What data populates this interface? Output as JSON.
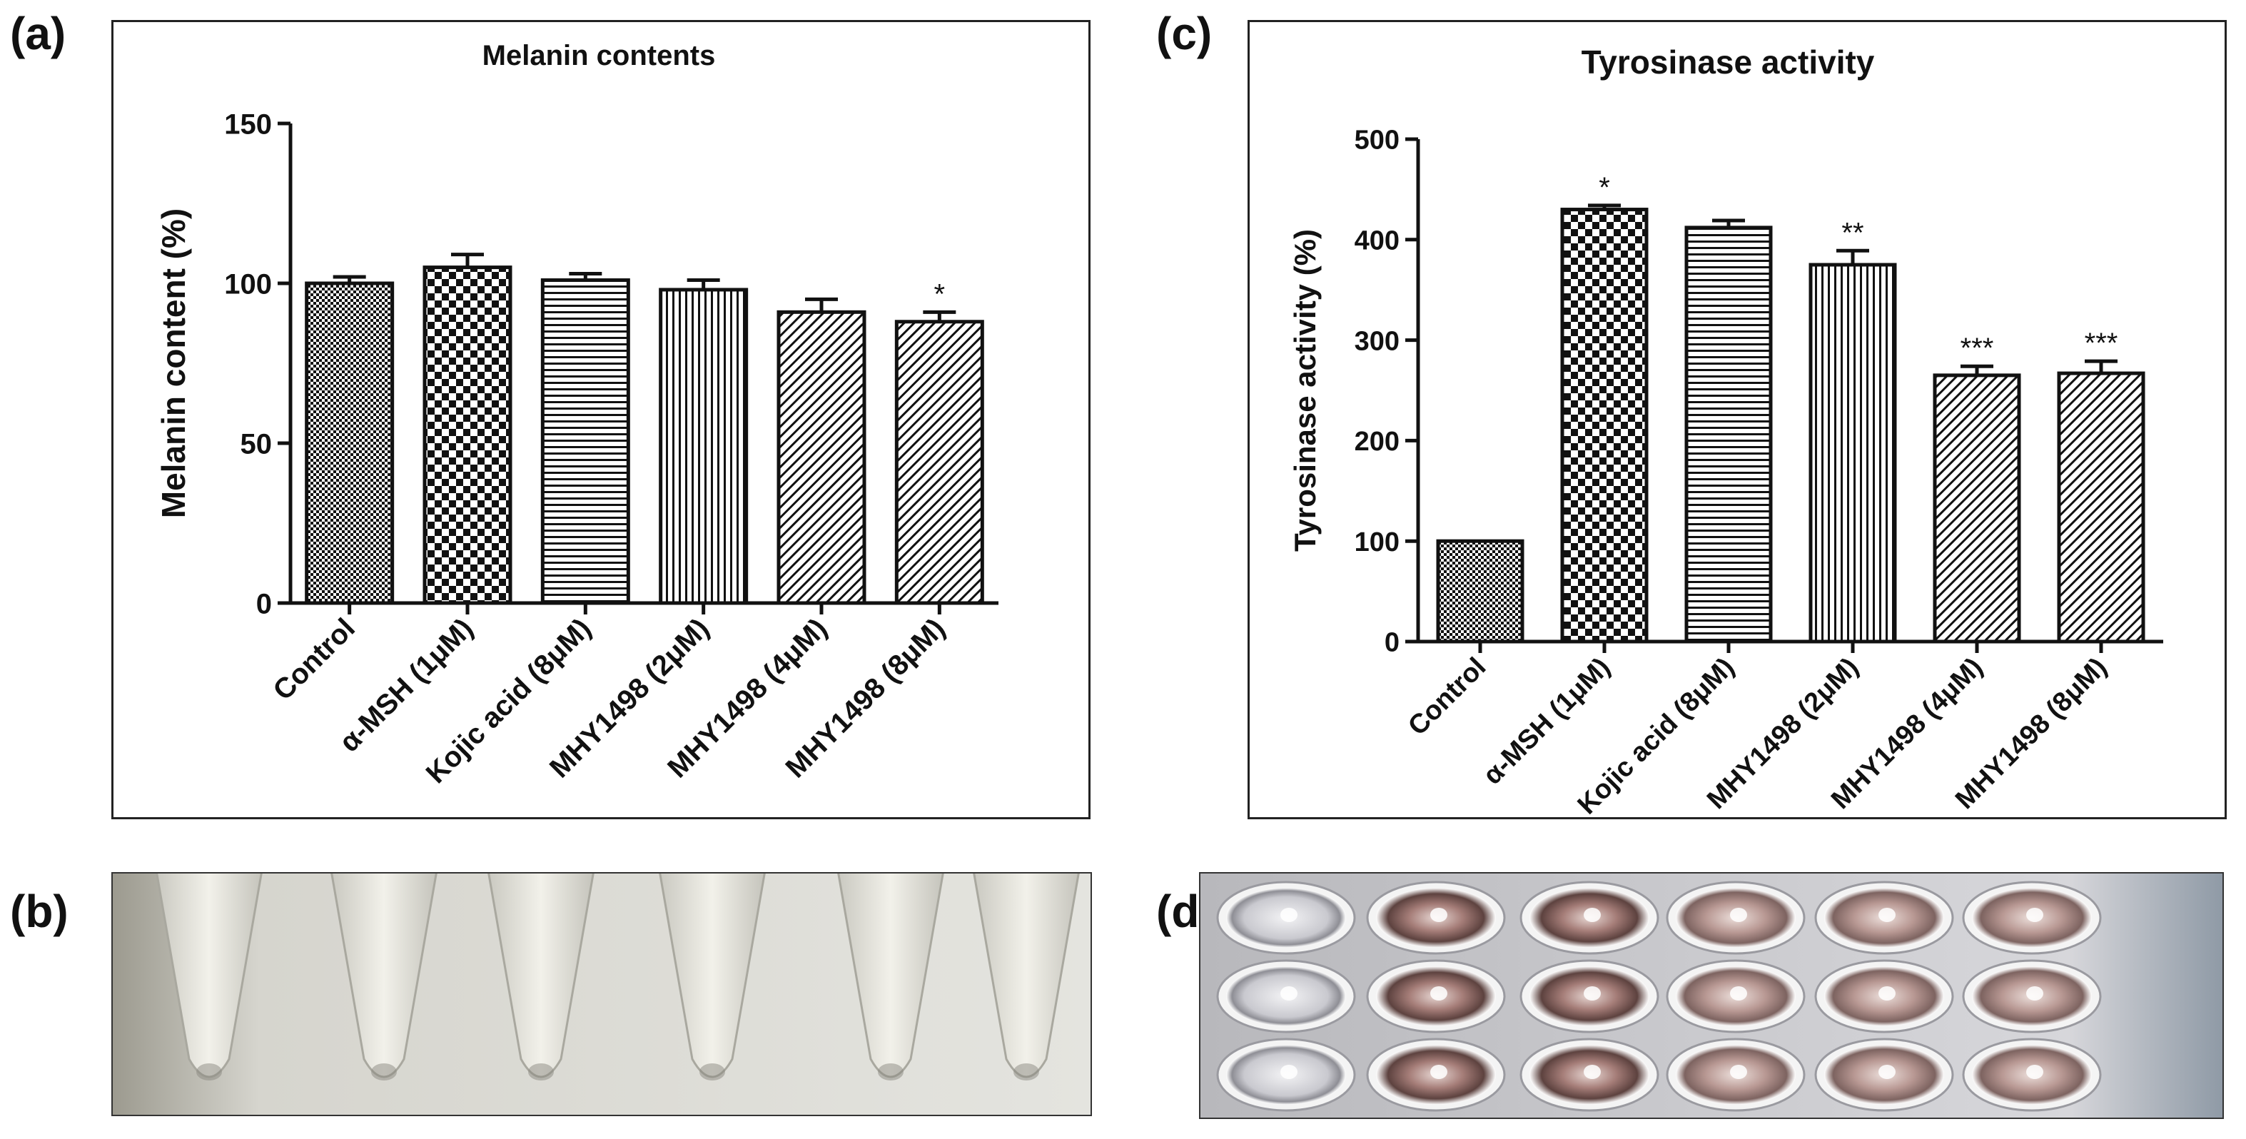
{
  "panels": {
    "a": "(a)",
    "b": "(b)",
    "c": "(c)",
    "d": "(d)"
  },
  "chart_data": [
    {
      "id": "melanin",
      "type": "bar",
      "title": "Melanin contents",
      "xlabel": "",
      "ylabel": "Melanin content (%)",
      "ylim": [
        0,
        150
      ],
      "yticks": [
        0,
        50,
        100,
        150
      ],
      "categories": [
        "Control",
        "α-MSH (1μM)",
        "Kojic acid (8μM)",
        "MHY1498 (2μM)",
        "MHY1498 (4μM)",
        "MHY1498 (8μM)"
      ],
      "values": [
        100,
        105,
        101,
        98,
        91,
        88
      ],
      "errors": [
        2,
        4,
        2,
        3,
        4,
        3
      ],
      "significance": [
        "",
        "",
        "",
        "",
        "",
        "*"
      ],
      "patterns": [
        "fine-check",
        "checker",
        "horizontal",
        "vertical",
        "diagonal",
        "diagonal"
      ]
    },
    {
      "id": "tyrosinase",
      "type": "bar",
      "title": "Tyrosinase activity",
      "xlabel": "",
      "ylabel": "Tyrosinase activity (%)",
      "ylim": [
        0,
        500
      ],
      "yticks": [
        0,
        100,
        200,
        300,
        400,
        500
      ],
      "categories": [
        "Control",
        "α-MSH (1μM)",
        "Kojic acid (8μM)",
        "MHY1498 (2μM)",
        "MHY1498 (4μM)",
        "MHY1498 (8μM)"
      ],
      "values": [
        100,
        430,
        412,
        375,
        265,
        267
      ],
      "errors": [
        0,
        4,
        7,
        14,
        9,
        12
      ],
      "significance": [
        "",
        "*",
        "",
        "**",
        "***",
        "***"
      ],
      "patterns": [
        "fine-check",
        "checker",
        "horizontal",
        "vertical",
        "diagonal",
        "diagonal"
      ]
    }
  ]
}
